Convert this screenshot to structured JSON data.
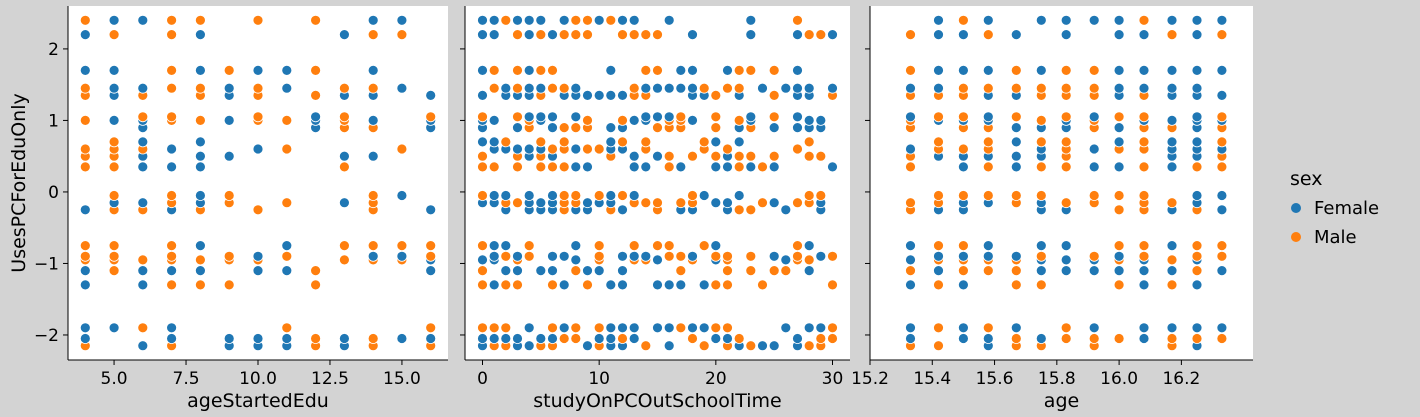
{
  "chart_data": {
    "type": "scatter",
    "ylabel": "UsesPCForEduOnly",
    "ylim": [
      -2.35,
      2.6
    ],
    "yticks": [
      -2,
      -1,
      0,
      1,
      2
    ],
    "y_levels": [
      -2.15,
      -2.05,
      -1.9,
      -1.3,
      -1.1,
      -0.95,
      -0.9,
      -0.75,
      -0.25,
      -0.15,
      -0.05,
      0.35,
      0.5,
      0.6,
      0.7,
      0.9,
      1.0,
      1.05,
      1.35,
      1.45,
      1.7,
      2.2,
      2.4
    ],
    "legend": {
      "title": "sex",
      "position": "right",
      "entries": [
        {
          "label": " Female",
          "color": "#1f77b4"
        },
        {
          "label": " Male",
          "color": "#ff7f0e"
        }
      ]
    },
    "colors": {
      "Female": "#1f77b4",
      "Male": "#ff7f0e"
    },
    "panels": [
      {
        "xlabel": "ageStartedEdu",
        "xlim": [
          3.4,
          16.6
        ],
        "xticks": [
          5.0,
          7.5,
          10.0,
          12.5,
          15.0
        ],
        "xtick_labels": [
          "5.0",
          "7.5",
          "10.0",
          "12.5",
          "15.0"
        ],
        "x_values": [
          4,
          5,
          6,
          7,
          8,
          9,
          10,
          11,
          12,
          13,
          14,
          15,
          16
        ]
      },
      {
        "xlabel": "studyOnPCOutSchoolTime",
        "xlim": [
          -1.5,
          31.5
        ],
        "xticks": [
          0,
          10,
          20,
          30
        ],
        "xtick_labels": [
          "0",
          "10",
          "20",
          "30"
        ],
        "x_values": [
          0,
          1,
          2,
          3,
          4,
          5,
          6,
          7,
          8,
          9,
          10,
          11,
          12,
          13,
          14,
          15,
          16,
          17,
          18,
          19,
          20,
          21,
          22,
          23,
          24,
          25,
          26,
          27,
          28,
          29,
          30
        ]
      },
      {
        "xlabel": "age",
        "xlim": [
          15.2,
          16.43
        ],
        "xticks": [
          15.2,
          15.4,
          15.6,
          15.8,
          16.0,
          16.2
        ],
        "xtick_labels": [
          "15.2",
          "15.4",
          "15.6",
          "15.8",
          "16.0",
          "16.2"
        ],
        "x_values": [
          15.33,
          15.42,
          15.5,
          15.58,
          15.67,
          15.75,
          15.83,
          15.92,
          16.0,
          16.08,
          16.17,
          16.25,
          16.33
        ]
      }
    ]
  }
}
